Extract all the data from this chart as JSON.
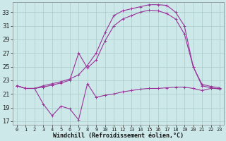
{
  "xlabel": "Windchill (Refroidissement éolien,°C)",
  "background_color": "#cce8e8",
  "grid_color": "#aacccc",
  "line_color": "#993399",
  "xlim": [
    -0.5,
    23.5
  ],
  "ylim": [
    16.5,
    34.5
  ],
  "yticks": [
    17,
    19,
    21,
    23,
    25,
    27,
    29,
    31,
    33
  ],
  "xticks": [
    0,
    1,
    2,
    3,
    4,
    5,
    6,
    7,
    8,
    9,
    10,
    11,
    12,
    13,
    14,
    15,
    16,
    17,
    18,
    19,
    20,
    21,
    22,
    23
  ],
  "series1_x": [
    0,
    1,
    2,
    3,
    4,
    5,
    6,
    7,
    8,
    9,
    10,
    11,
    12,
    13,
    14,
    15,
    16,
    17,
    18,
    19,
    20,
    21,
    22,
    23
  ],
  "series1_y": [
    22.2,
    21.8,
    21.8,
    22.2,
    22.5,
    22.8,
    23.2,
    23.8,
    25.2,
    27.0,
    30.0,
    32.5,
    33.2,
    33.5,
    33.8,
    34.1,
    34.1,
    34.0,
    33.0,
    31.0,
    25.0,
    22.4,
    22.1,
    21.9
  ],
  "series2_x": [
    0,
    1,
    2,
    3,
    4,
    5,
    6,
    7,
    8,
    9,
    10,
    11,
    12,
    13,
    14,
    15,
    16,
    17,
    18,
    19,
    20,
    21,
    22,
    23
  ],
  "series2_y": [
    22.2,
    21.8,
    21.8,
    22.0,
    22.3,
    22.6,
    23.0,
    27.0,
    24.8,
    26.0,
    28.8,
    31.0,
    32.0,
    32.5,
    33.0,
    33.3,
    33.2,
    32.8,
    32.0,
    29.8,
    25.0,
    22.2,
    21.9,
    21.7
  ],
  "series3_x": [
    0,
    1,
    2,
    3,
    4,
    5,
    6,
    7,
    8,
    9,
    10,
    11,
    12,
    13,
    14,
    15,
    16,
    17,
    18,
    19,
    20,
    21,
    22,
    23
  ],
  "series3_y": [
    22.2,
    21.8,
    21.8,
    19.5,
    17.8,
    19.2,
    18.8,
    17.2,
    22.5,
    20.5,
    20.8,
    21.0,
    21.3,
    21.5,
    21.7,
    21.8,
    21.8,
    21.9,
    22.0,
    22.0,
    21.8,
    21.5,
    21.8,
    21.8
  ],
  "tick_fontsize": 6,
  "xlabel_fontsize": 6
}
